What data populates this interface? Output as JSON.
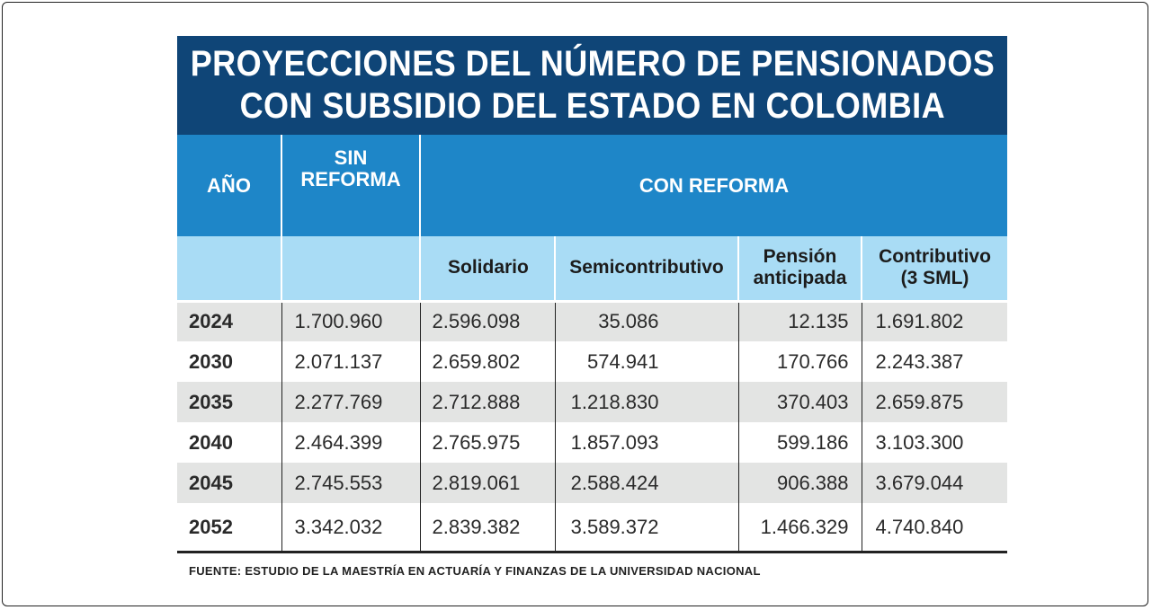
{
  "title": {
    "line1": "PROYECCIONES DEL NÚMERO DE PENSIONADOS",
    "line2": "CON SUBSIDIO DEL ESTADO EN COLOMBIA"
  },
  "headers": {
    "year": "AÑO",
    "sin_reforma_1": "SIN",
    "sin_reforma_2": "REFORMA",
    "con_reforma": "CON REFORMA",
    "solidario": "Solidario",
    "semicontributivo": "Semicontributivo",
    "pension_1": "Pensión",
    "pension_2": "anticipada",
    "contributivo_1": "Contributivo",
    "contributivo_2": "(3 SML)"
  },
  "rows": [
    {
      "year": "2024",
      "sin_reforma": "1.700.960",
      "solidario": "2.596.098",
      "semicontributivo": "35.086",
      "pension_anticipada": "12.135",
      "contributivo": "1.691.802"
    },
    {
      "year": "2030",
      "sin_reforma": "2.071.137",
      "solidario": "2.659.802",
      "semicontributivo": "574.941",
      "pension_anticipada": "170.766",
      "contributivo": "2.243.387"
    },
    {
      "year": "2035",
      "sin_reforma": "2.277.769",
      "solidario": "2.712.888",
      "semicontributivo": "1.218.830",
      "pension_anticipada": "370.403",
      "contributivo": "2.659.875"
    },
    {
      "year": "2040",
      "sin_reforma": "2.464.399",
      "solidario": "2.765.975",
      "semicontributivo": "1.857.093",
      "pension_anticipada": "599.186",
      "contributivo": "3.103.300"
    },
    {
      "year": "2045",
      "sin_reforma": "2.745.553",
      "solidario": "2.819.061",
      "semicontributivo": "2.588.424",
      "pension_anticipada": "906.388",
      "contributivo": "3.679.044"
    },
    {
      "year": "2052",
      "sin_reforma": "3.342.032",
      "solidario": "2.839.382",
      "semicontributivo": "3.589.372",
      "pension_anticipada": "1.466.329",
      "contributivo": "4.740.840"
    }
  ],
  "source": "FUENTE: ESTUDIO DE LA MAESTRÍA EN ACTUARÍA Y FINANZAS DE LA UNIVERSIDAD NACIONAL",
  "colors": {
    "title_bg": "#0f4577",
    "header_bg": "#1e86c8",
    "subheader_bg": "#a9dcf5",
    "shaded_row": "#e3e4e3"
  }
}
